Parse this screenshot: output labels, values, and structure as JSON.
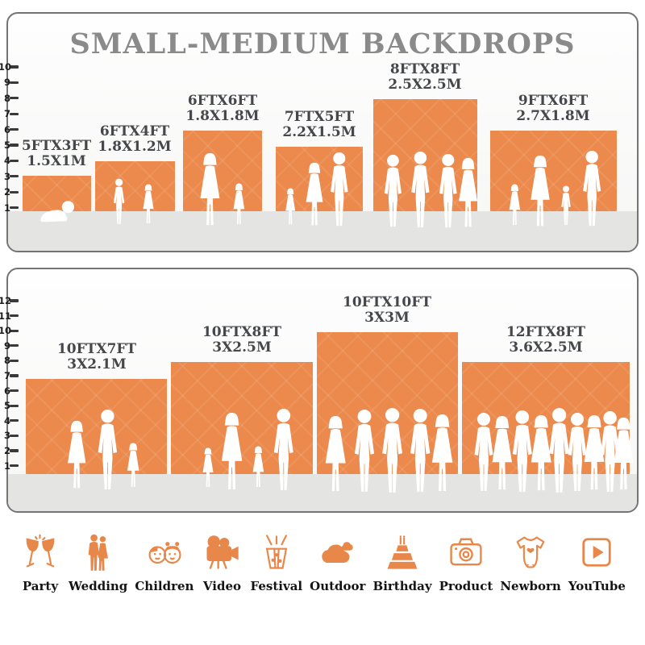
{
  "title": "SMALL-MEDIUM BACKDROPS",
  "colors": {
    "backdrop_orange": "#EB8A4C",
    "title_gray": "#8A8A8A",
    "label_dark": "#45474B",
    "floor_gray": "#E4E4E2",
    "panel_border": "#747474",
    "icon_orange": "#E8874A",
    "icon_label_black": "#141414"
  },
  "panels": [
    {
      "name": "small backdrops",
      "ruler_numbers": [
        "10",
        "9",
        "8",
        "7",
        "6",
        "5",
        "4",
        "3",
        "2",
        "1"
      ],
      "backdrops": [
        {
          "size_ft": "5FTX3FT",
          "size_m": "1.5X1M",
          "figures": [
            "baby"
          ]
        },
        {
          "size_ft": "6FTX4FT",
          "size_m": "1.8X1.2M",
          "figures": [
            "boy",
            "girl"
          ]
        },
        {
          "size_ft": "6FTX6FT",
          "size_m": "1.8X1.8M",
          "figures": [
            "woman",
            "girl"
          ]
        },
        {
          "size_ft": "7FTX5FT",
          "size_m": "2.2X1.5M",
          "figures": [
            "girl",
            "woman",
            "man"
          ]
        },
        {
          "size_ft": "8FTX8FT",
          "size_m": "2.5X2.5M",
          "figures": [
            "man",
            "man",
            "man",
            "woman"
          ]
        },
        {
          "size_ft": "9FTX6FT",
          "size_m": "2.7X1.8M",
          "figures": [
            "girl",
            "woman",
            "boy",
            "man"
          ]
        }
      ]
    },
    {
      "name": "medium backdrops",
      "ruler_numbers": [
        "12",
        "11",
        "10",
        "9",
        "8",
        "7",
        "6",
        "5",
        "4",
        "3",
        "2",
        "1"
      ],
      "backdrops": [
        {
          "size_ft": "10FTX7FT",
          "size_m": "3X2.1M",
          "figures": [
            "woman",
            "man",
            "girl"
          ]
        },
        {
          "size_ft": "10FTX8FT",
          "size_m": "3X2.5M",
          "figures": [
            "girl",
            "woman",
            "girl",
            "man"
          ]
        },
        {
          "size_ft": "10FTX10FT",
          "size_m": "3X3M",
          "figures": [
            "woman",
            "man",
            "man",
            "man",
            "woman"
          ]
        },
        {
          "size_ft": "12FTX8FT",
          "size_m": "3.6X2.5M",
          "figures": [
            "man",
            "woman",
            "man",
            "woman",
            "man",
            "man",
            "woman",
            "man",
            "woman"
          ]
        }
      ]
    }
  ],
  "categories": [
    {
      "label": "Party",
      "icon": "party-icon"
    },
    {
      "label": "Wedding",
      "icon": "wedding-icon"
    },
    {
      "label": "Children",
      "icon": "children-icon"
    },
    {
      "label": "Video",
      "icon": "video-icon"
    },
    {
      "label": "Festival",
      "icon": "festival-icon"
    },
    {
      "label": "Outdoor",
      "icon": "outdoor-icon"
    },
    {
      "label": "Birthday",
      "icon": "birthday-icon"
    },
    {
      "label": "Product",
      "icon": "product-icon"
    },
    {
      "label": "Newborn",
      "icon": "newborn-icon"
    },
    {
      "label": "YouTube",
      "icon": "youtube-icon"
    }
  ]
}
